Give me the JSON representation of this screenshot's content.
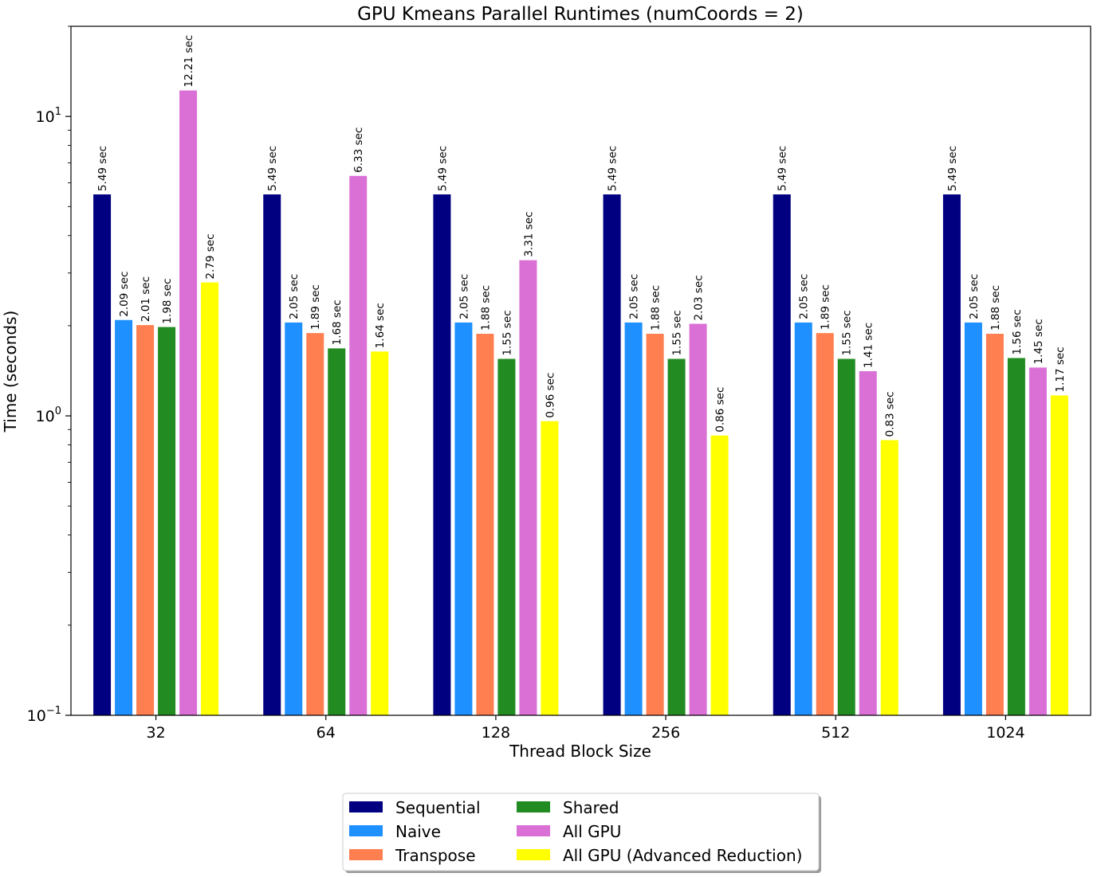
{
  "chart_data": {
    "type": "bar",
    "title": "GPU Kmeans Parallel Runtimes (numCoords = 2)",
    "xlabel": "Thread Block Size",
    "ylabel": "Time (seconds)",
    "yscale": "log",
    "ylim": [
      0.1,
      20
    ],
    "ytick_labels": [
      {
        "value": 0.1,
        "base": "10",
        "exp": "−1"
      },
      {
        "value": 1,
        "base": "10",
        "exp": "0"
      },
      {
        "value": 10,
        "base": "10",
        "exp": "1"
      }
    ],
    "categories": [
      "32",
      "64",
      "128",
      "256",
      "512",
      "1024"
    ],
    "series": [
      {
        "name": "Sequential",
        "color": "#000080",
        "values": [
          5.49,
          5.49,
          5.49,
          5.49,
          5.49,
          5.49
        ],
        "labels": [
          "5.49 sec",
          "5.49 sec",
          "5.49 sec",
          "5.49 sec",
          "5.49 sec",
          "5.49 sec"
        ]
      },
      {
        "name": "Naive",
        "color": "#1e90ff",
        "values": [
          2.09,
          2.05,
          2.05,
          2.05,
          2.05,
          2.05
        ],
        "labels": [
          "2.09 sec",
          "2.05 sec",
          "2.05 sec",
          "2.05 sec",
          "2.05 sec",
          "2.05 sec"
        ]
      },
      {
        "name": "Transpose",
        "color": "#ff7f50",
        "values": [
          2.01,
          1.89,
          1.88,
          1.88,
          1.89,
          1.88
        ],
        "labels": [
          "2.01 sec",
          "1.89 sec",
          "1.88 sec",
          "1.88 sec",
          "1.89 sec",
          "1.88 sec"
        ]
      },
      {
        "name": "Shared",
        "color": "#228b22",
        "values": [
          1.98,
          1.68,
          1.55,
          1.55,
          1.55,
          1.56
        ],
        "labels": [
          "1.98 sec",
          "1.68 sec",
          "1.55 sec",
          "1.55 sec",
          "1.55 sec",
          "1.56 sec"
        ]
      },
      {
        "name": "All GPU",
        "color": "#da70d6",
        "values": [
          12.21,
          6.33,
          3.31,
          2.03,
          1.41,
          1.45
        ],
        "labels": [
          "12.21 sec",
          "6.33 sec",
          "3.31 sec",
          "2.03 sec",
          "1.41 sec",
          "1.45 sec"
        ]
      },
      {
        "name": "All GPU (Advanced Reduction)",
        "color": "#ffff00",
        "values": [
          2.79,
          1.64,
          0.96,
          0.86,
          0.83,
          1.17
        ],
        "labels": [
          "2.79 sec",
          "1.64 sec",
          "0.96 sec",
          "0.86 sec",
          "0.83 sec",
          "1.17 sec"
        ]
      }
    ],
    "legend": {
      "placement": "bottom-center",
      "columns": 2
    },
    "grid": false
  }
}
